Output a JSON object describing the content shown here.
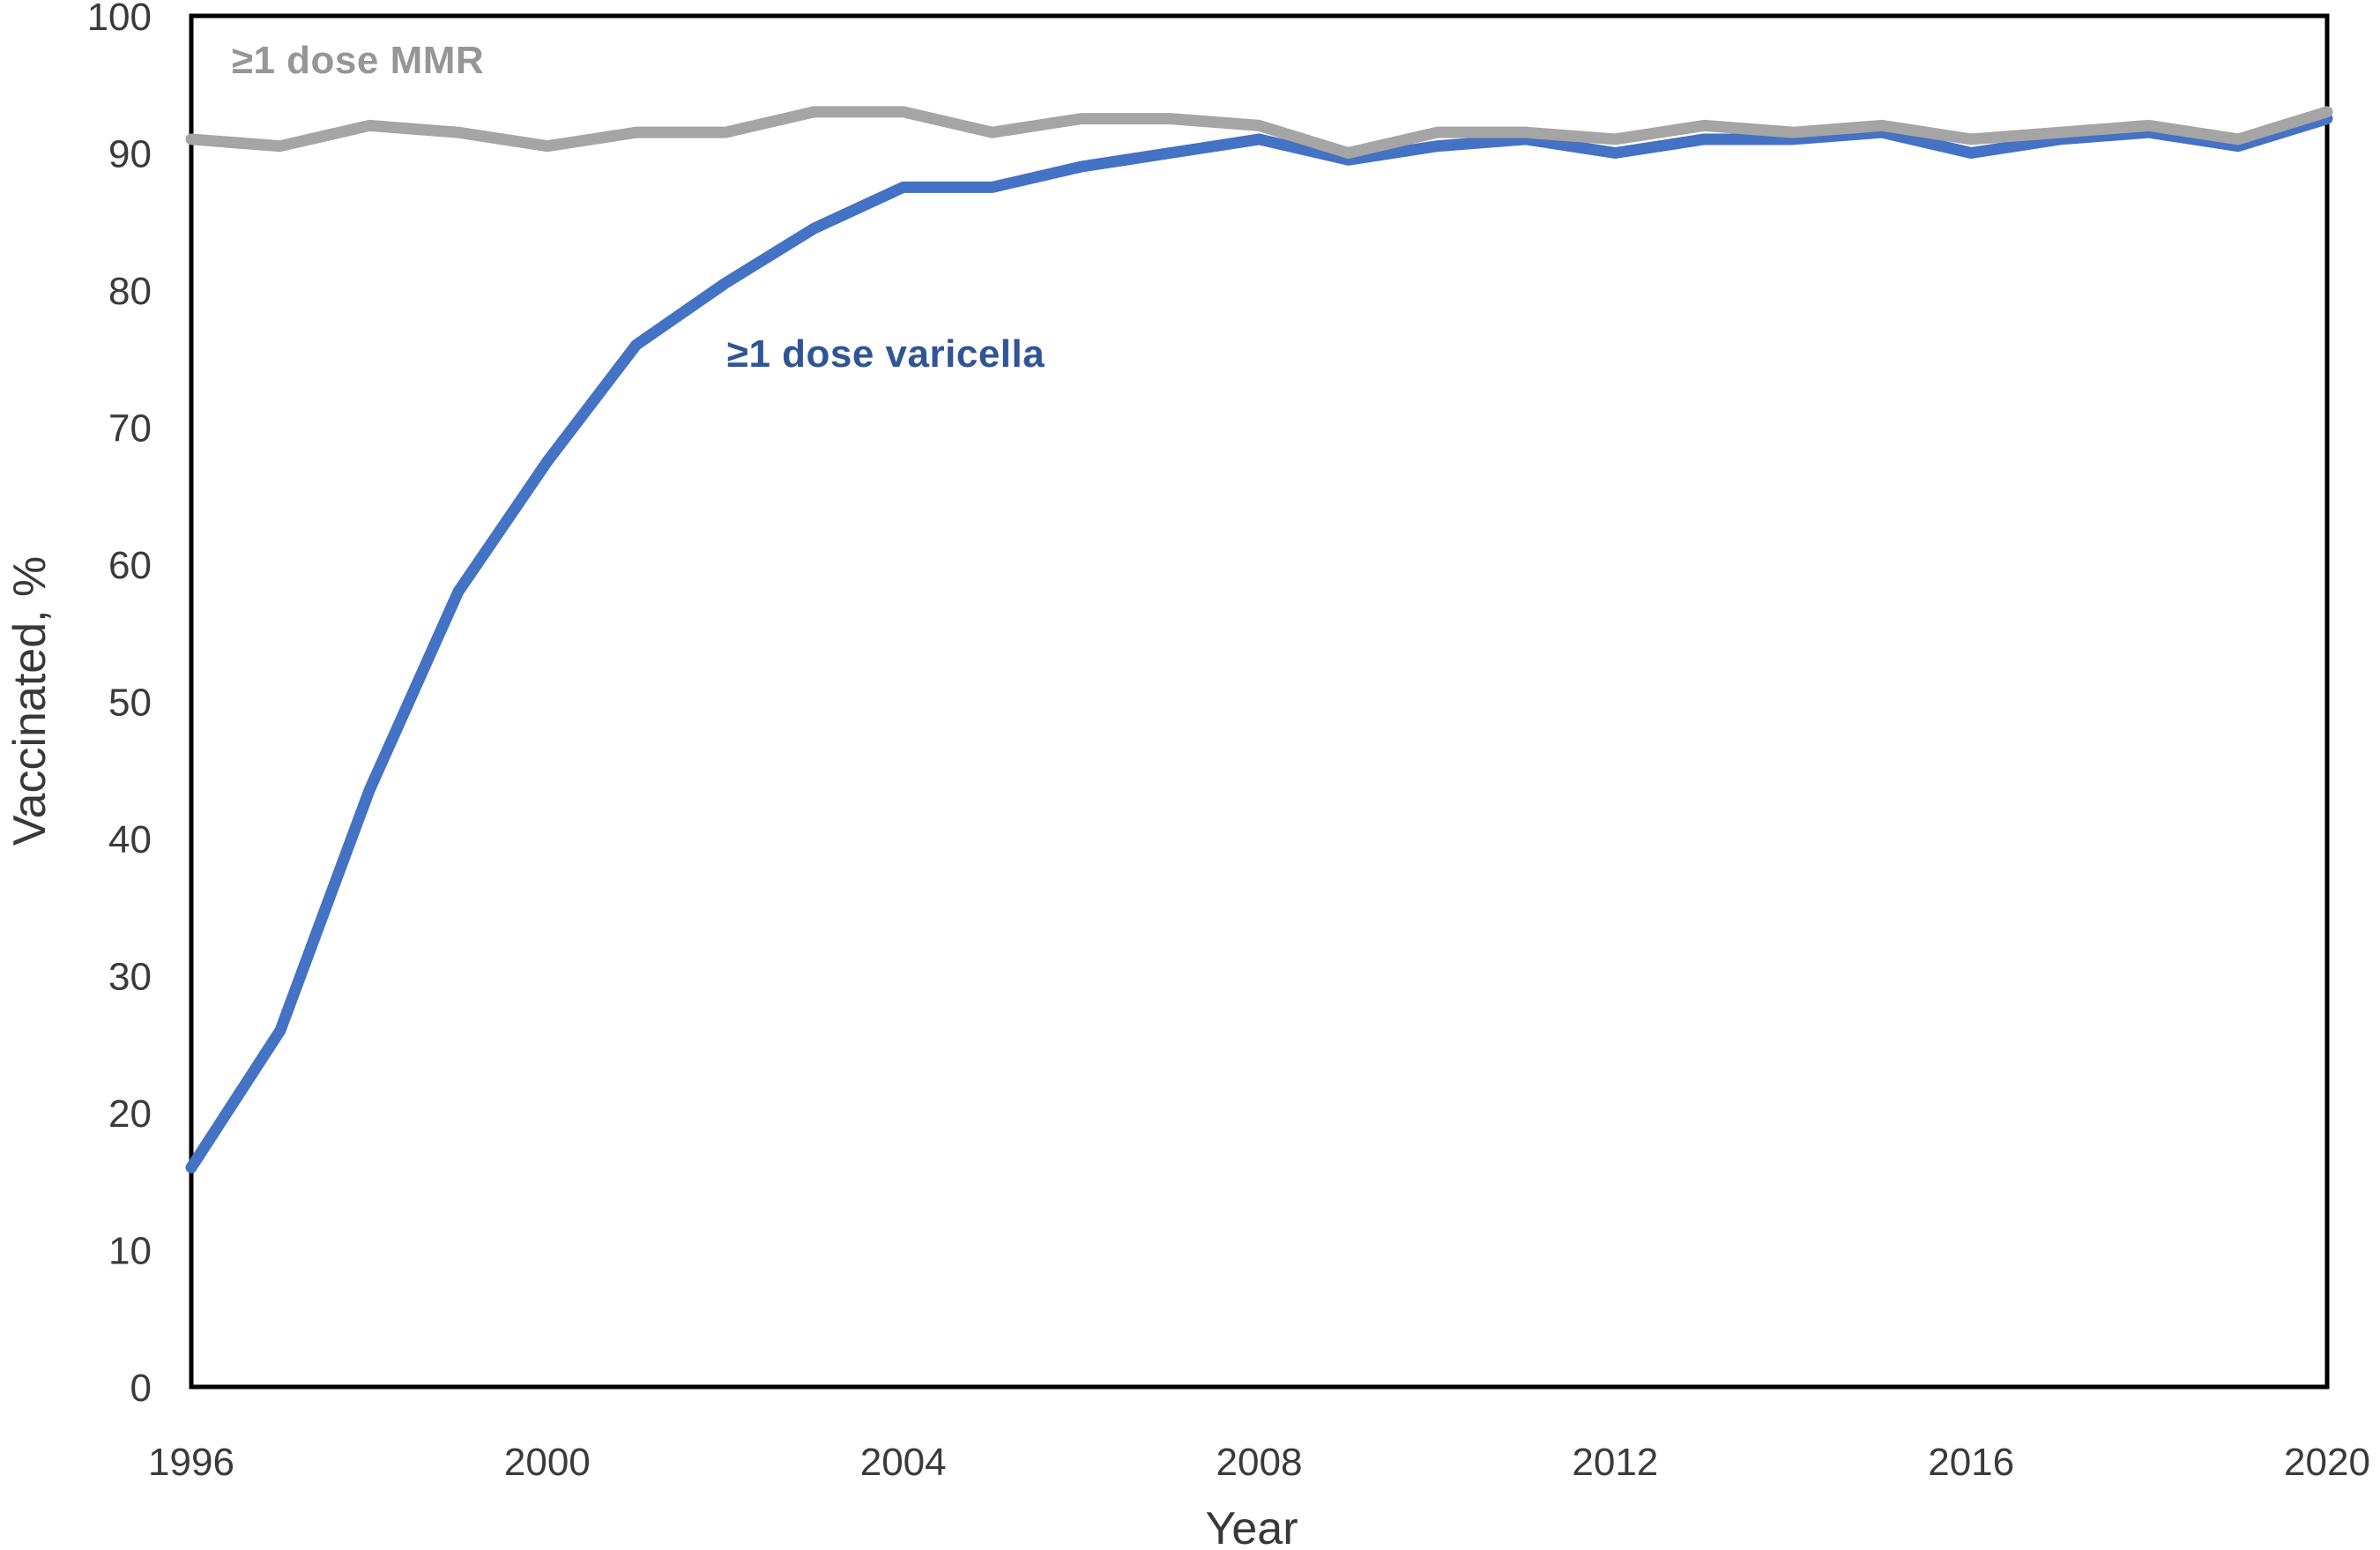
{
  "chart_data": {
    "type": "line",
    "title": "",
    "xlabel": "Year",
    "ylabel": "Vaccinated, %",
    "xlim": [
      1996,
      2020
    ],
    "ylim": [
      0,
      100
    ],
    "x_ticks": [
      1996,
      2000,
      2004,
      2008,
      2012,
      2016,
      2020
    ],
    "y_ticks": [
      0,
      10,
      20,
      30,
      40,
      50,
      60,
      70,
      80,
      90,
      100
    ],
    "grid": false,
    "legend": "inline-labels",
    "x": [
      1996,
      1997,
      1998,
      1999,
      2000,
      2001,
      2002,
      2003,
      2004,
      2005,
      2006,
      2007,
      2008,
      2009,
      2010,
      2011,
      2012,
      2013,
      2014,
      2015,
      2016,
      2017,
      2018,
      2019,
      2020
    ],
    "series": [
      {
        "name": "varicella",
        "label": "≥1 dose varicella",
        "color": "#4472C4",
        "label_color": "#2F5597",
        "values": [
          16,
          26,
          43.5,
          58,
          67.5,
          76,
          80.5,
          84.5,
          87.5,
          87.5,
          89,
          90,
          91,
          89.5,
          90.5,
          91,
          90,
          91,
          91,
          91.5,
          90,
          91,
          91.5,
          90.5,
          92.5
        ]
      },
      {
        "name": "mmr",
        "label": "≥1 dose MMR",
        "color": "#A5A5A5",
        "label_color": "#969696",
        "values": [
          91,
          90.5,
          92,
          91.5,
          90.5,
          91.5,
          91.5,
          93,
          93,
          91.5,
          92.5,
          92.5,
          92,
          90,
          91.5,
          91.5,
          91,
          92,
          91.5,
          92,
          91,
          91.5,
          92,
          91,
          93
        ]
      }
    ],
    "axis_color": "#000000",
    "tick_label_color": "#3a3a3a"
  }
}
